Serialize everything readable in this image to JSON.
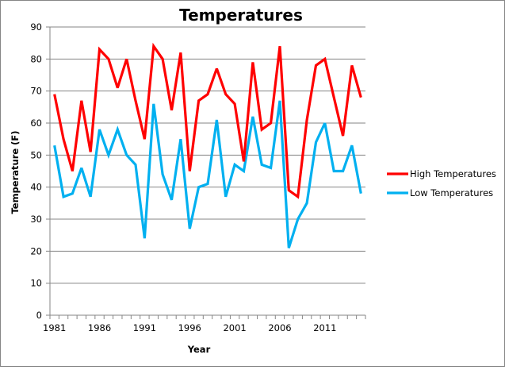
{
  "chart_data": {
    "type": "line",
    "title": "Temperatures",
    "xlabel": "Year",
    "ylabel": "Temperature (F)",
    "ylim": [
      0,
      90
    ],
    "yticks": [
      0,
      10,
      20,
      30,
      40,
      50,
      60,
      70,
      80,
      90
    ],
    "x": [
      1981,
      1982,
      1983,
      1984,
      1985,
      1986,
      1987,
      1988,
      1989,
      1990,
      1991,
      1992,
      1993,
      1994,
      1995,
      1996,
      1997,
      1998,
      1999,
      2000,
      2001,
      2002,
      2003,
      2004,
      2005,
      2006,
      2007,
      2008,
      2009,
      2010,
      2011,
      2012,
      2013,
      2014,
      2015
    ],
    "xtick_labels": [
      "1981",
      "1986",
      "1991",
      "1996",
      "2001",
      "2006",
      "2011"
    ],
    "grid": "horizontal",
    "legend_position": "right",
    "series": [
      {
        "name": "High Temperatures",
        "color": "#ff0000",
        "values": [
          69,
          55,
          45,
          67,
          51,
          83,
          80,
          71,
          80,
          67,
          55,
          84,
          80,
          64,
          82,
          45,
          67,
          69,
          77,
          69,
          66,
          48,
          79,
          58,
          60,
          84,
          39,
          37,
          61,
          78,
          80,
          68,
          56,
          78,
          68
        ]
      },
      {
        "name": "Low Temperatures",
        "color": "#00b0f0",
        "values": [
          53,
          37,
          38,
          46,
          37,
          58,
          50,
          58,
          50,
          47,
          24,
          66,
          44,
          36,
          55,
          27,
          40,
          41,
          61,
          37,
          47,
          45,
          62,
          47,
          46,
          67,
          21,
          30,
          35,
          54,
          60,
          45,
          45,
          53,
          38
        ]
      }
    ]
  }
}
